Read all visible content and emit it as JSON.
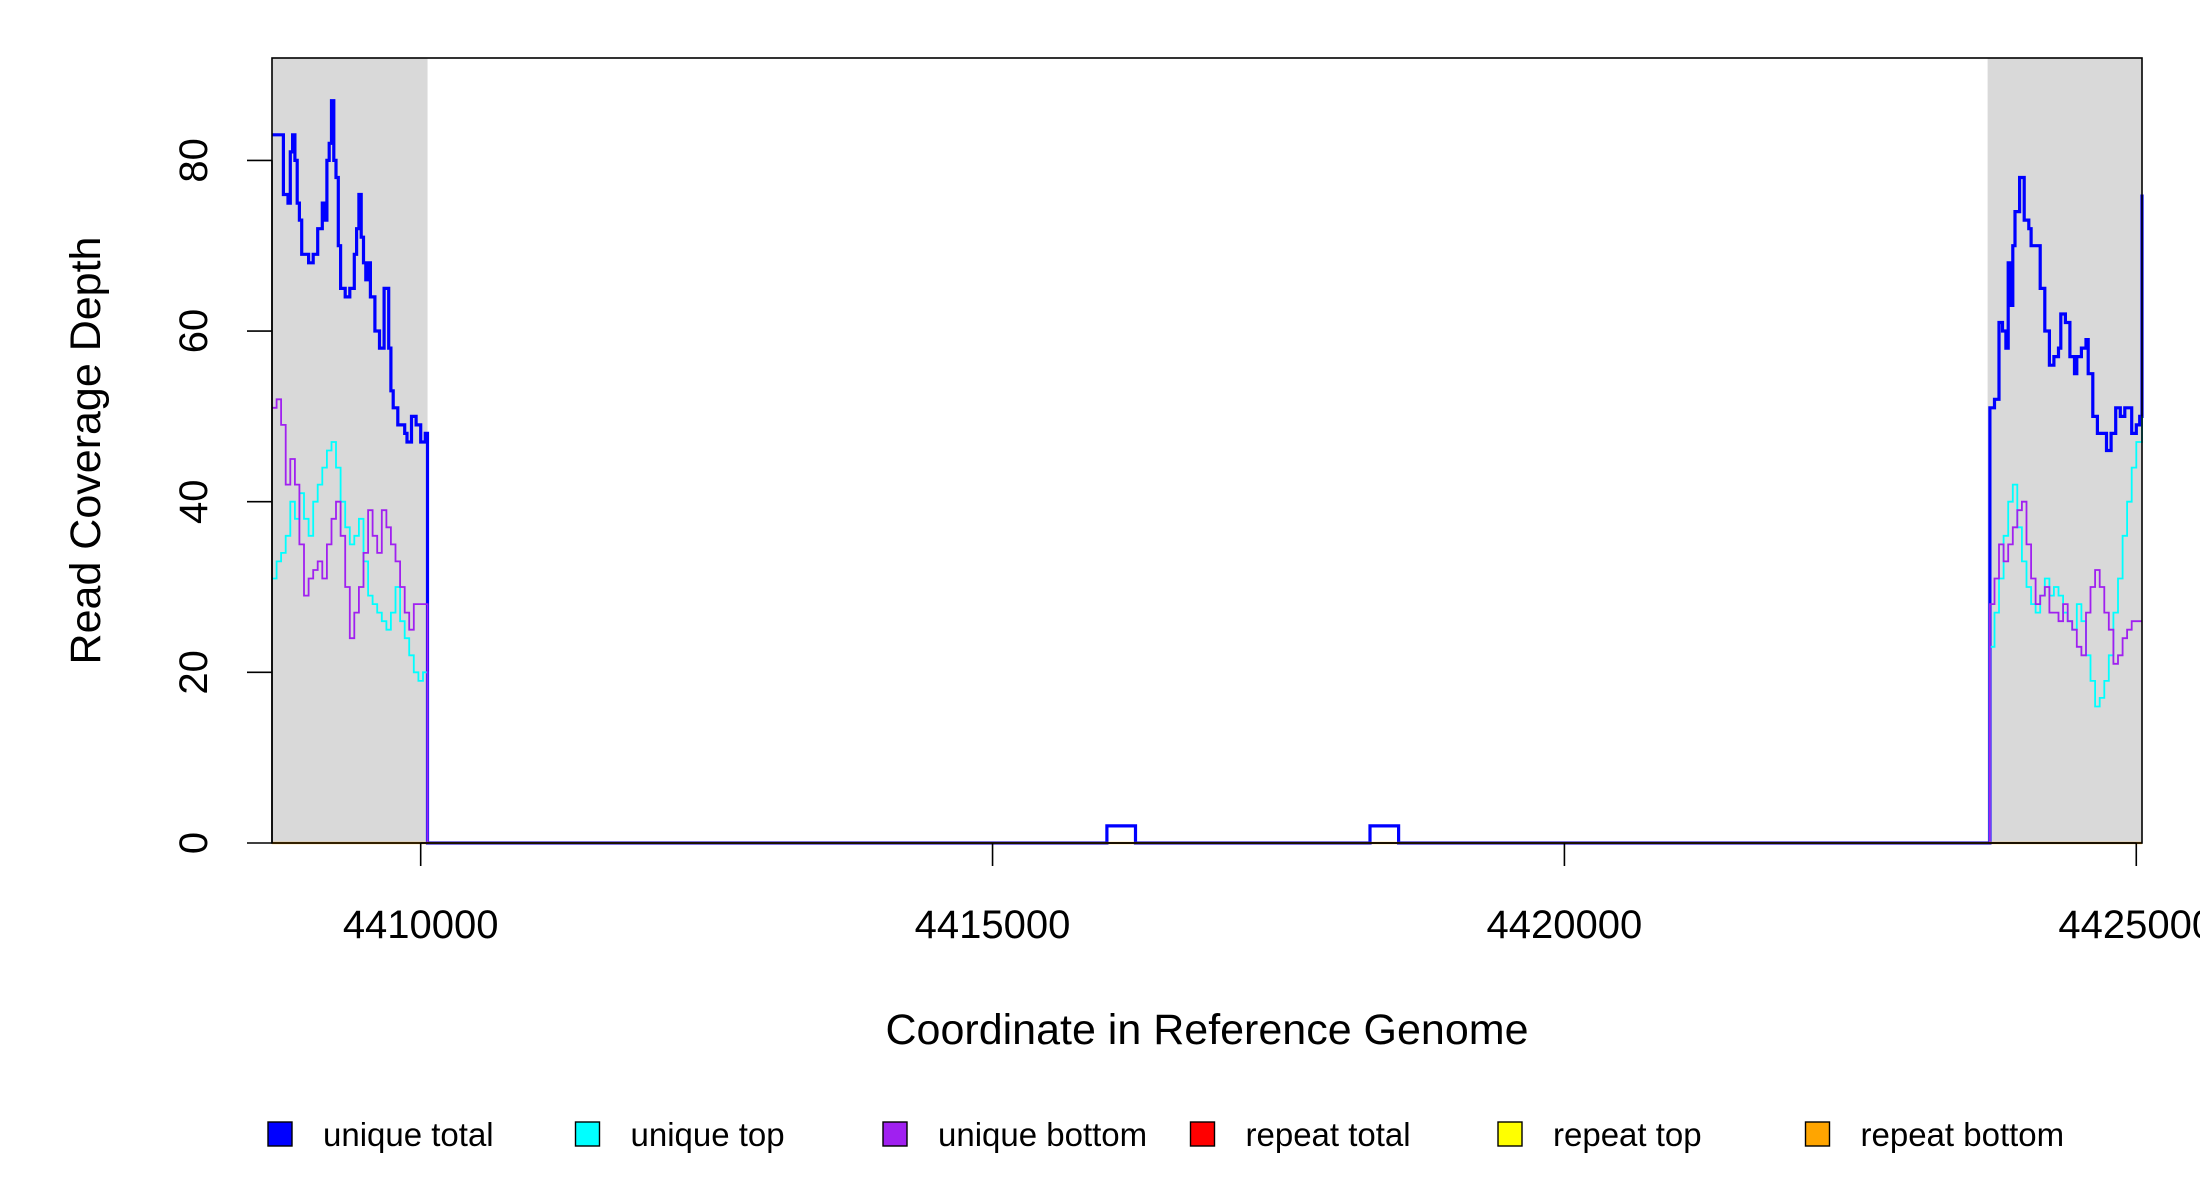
{
  "chart_data": {
    "type": "line",
    "title": "",
    "xlabel": "Coordinate in Reference Genome",
    "ylabel": "Read Coverage Depth",
    "xlim": [
      4408700,
      4425050
    ],
    "ylim": [
      0,
      92
    ],
    "x_ticks": [
      {
        "value": 4410000,
        "label": "4410000"
      },
      {
        "value": 4415000,
        "label": "4415000"
      },
      {
        "value": 4420000,
        "label": "4420000"
      },
      {
        "value": 4425000,
        "label": "4425000"
      }
    ],
    "y_ticks": [
      {
        "value": 0,
        "label": "0"
      },
      {
        "value": 20,
        "label": "20"
      },
      {
        "value": 40,
        "label": "40"
      },
      {
        "value": 60,
        "label": "60"
      },
      {
        "value": 80,
        "label": "80"
      }
    ],
    "shaded_regions": [
      {
        "x0": 4408700,
        "x1": 4410060,
        "color": "#d9d9d9"
      },
      {
        "x0": 4423700,
        "x1": 4425050,
        "color": "#d9d9d9"
      }
    ],
    "legend_position": "bottom",
    "series": [
      {
        "name": "unique total",
        "color": "#0000ff",
        "width": 3.2,
        "x": [
          4408700,
          4408780,
          4408800,
          4408840,
          4408860,
          4408880,
          4408900,
          4408920,
          4408940,
          4408960,
          4409000,
          4409020,
          4409060,
          4409100,
          4409140,
          4409160,
          4409180,
          4409200,
          4409220,
          4409240,
          4409260,
          4409280,
          4409300,
          4409340,
          4409380,
          4409420,
          4409440,
          4409460,
          4409480,
          4409500,
          4409520,
          4409540,
          4409560,
          4409600,
          4409640,
          4409680,
          4409720,
          4409740,
          4409760,
          4409800,
          4409840,
          4409860,
          4409880,
          4409920,
          4409960,
          4410000,
          4410040,
          4410060,
          4410100,
          4415980,
          4416000,
          4416200,
          4416250,
          4418280,
          4418300,
          4418500,
          4418550,
          4423700,
          4423720,
          4423760,
          4423800,
          4423830,
          4423860,
          4423880,
          4423900,
          4423920,
          4423940,
          4423980,
          4424020,
          4424060,
          4424080,
          4424120,
          4424160,
          4424200,
          4424240,
          4424280,
          4424320,
          4424340,
          4424380,
          4424420,
          4424460,
          4424480,
          4424520,
          4424560,
          4424580,
          4424620,
          4424660,
          4424700,
          4424740,
          4424780,
          4424820,
          4424860,
          4424900,
          4424960,
          4425000,
          4425030,
          4425050
        ],
        "y": [
          83,
          83,
          76,
          75,
          81,
          83,
          80,
          75,
          73,
          69,
          69,
          68,
          69,
          72,
          75,
          73,
          80,
          82,
          87,
          80,
          78,
          70,
          65,
          64,
          65,
          69,
          72,
          76,
          71,
          68,
          66,
          68,
          64,
          60,
          58,
          65,
          58,
          53,
          51,
          49,
          49,
          48,
          47,
          50,
          49,
          47,
          48,
          0,
          0,
          0,
          2,
          2,
          0,
          0,
          2,
          2,
          0,
          0,
          51,
          52,
          61,
          60,
          58,
          68,
          63,
          70,
          74,
          78,
          73,
          72,
          70,
          70,
          65,
          60,
          56,
          57,
          58,
          62,
          61,
          57,
          55,
          57,
          58,
          59,
          55,
          50,
          48,
          48,
          46,
          48,
          51,
          50,
          51,
          48,
          49,
          50,
          76
        ]
      },
      {
        "name": "unique top",
        "color": "#00ffff",
        "width": 1.8,
        "x": [
          4408700,
          4408740,
          4408780,
          4408820,
          4408860,
          4408900,
          4408940,
          4408980,
          4409020,
          4409060,
          4409100,
          4409140,
          4409180,
          4409220,
          4409260,
          4409300,
          4409340,
          4409380,
          4409420,
          4409460,
          4409500,
          4409540,
          4409580,
          4409620,
          4409660,
          4409700,
          4409740,
          4409780,
          4409820,
          4409860,
          4409900,
          4409940,
          4409980,
          4410020,
          4410040,
          4410060,
          4410100,
          4423700,
          4423720,
          4423760,
          4423800,
          4423840,
          4423880,
          4423920,
          4423960,
          4424000,
          4424040,
          4424080,
          4424120,
          4424160,
          4424200,
          4424240,
          4424280,
          4424320,
          4424360,
          4424400,
          4424440,
          4424480,
          4424520,
          4424560,
          4424600,
          4424640,
          4424680,
          4424720,
          4424760,
          4424800,
          4424840,
          4424880,
          4424920,
          4424960,
          4425000,
          4425050
        ],
        "y": [
          31,
          33,
          34,
          36,
          40,
          38,
          41,
          38,
          36,
          40,
          42,
          44,
          46,
          47,
          44,
          40,
          37,
          35,
          36,
          38,
          33,
          29,
          28,
          27,
          26,
          25,
          27,
          30,
          26,
          24,
          22,
          20,
          19,
          20,
          20,
          0,
          0,
          0,
          23,
          27,
          31,
          36,
          40,
          42,
          37,
          33,
          30,
          28,
          27,
          29,
          31,
          29,
          30,
          29,
          27,
          26,
          25,
          28,
          26,
          22,
          19,
          16,
          17,
          19,
          22,
          27,
          31,
          36,
          40,
          44,
          47,
          50
        ]
      },
      {
        "name": "unique bottom",
        "color": "#a020f0",
        "width": 1.8,
        "x": [
          4408700,
          4408740,
          4408780,
          4408820,
          4408860,
          4408900,
          4408940,
          4408980,
          4409020,
          4409060,
          4409100,
          4409140,
          4409180,
          4409220,
          4409260,
          4409300,
          4409340,
          4409380,
          4409420,
          4409460,
          4409500,
          4409540,
          4409580,
          4409620,
          4409660,
          4409700,
          4409740,
          4409780,
          4409820,
          4409860,
          4409900,
          4409940,
          4409980,
          4410020,
          4410060,
          4410100,
          4423700,
          4423720,
          4423760,
          4423800,
          4423840,
          4423880,
          4423920,
          4423960,
          4424000,
          4424040,
          4424080,
          4424120,
          4424160,
          4424200,
          4424240,
          4424280,
          4424320,
          4424360,
          4424400,
          4424440,
          4424480,
          4424520,
          4424560,
          4424600,
          4424640,
          4424680,
          4424720,
          4424760,
          4424800,
          4424840,
          4424880,
          4424920,
          4424960,
          4425000,
          4425050
        ],
        "y": [
          51,
          52,
          49,
          42,
          45,
          42,
          35,
          29,
          31,
          32,
          33,
          31,
          35,
          38,
          40,
          36,
          30,
          24,
          27,
          30,
          34,
          39,
          36,
          34,
          39,
          37,
          35,
          33,
          30,
          27,
          25,
          28,
          28,
          28,
          0,
          0,
          0,
          28,
          31,
          35,
          33,
          35,
          37,
          39,
          40,
          35,
          31,
          28,
          29,
          30,
          27,
          27,
          26,
          28,
          26,
          25,
          23,
          22,
          27,
          30,
          32,
          30,
          27,
          25,
          21,
          22,
          24,
          25,
          26,
          26,
          26
        ]
      },
      {
        "name": "repeat total",
        "color": "#ff0000",
        "width": 1.6,
        "x": [
          4408700,
          4425050
        ],
        "y": [
          0,
          0
        ]
      },
      {
        "name": "repeat top",
        "color": "#ffff00",
        "width": 1.6,
        "x": [
          4408700,
          4425050
        ],
        "y": [
          0,
          0
        ]
      },
      {
        "name": "repeat bottom",
        "color": "#ffa500",
        "width": 2.2,
        "x": [
          4408700,
          4425050
        ],
        "y": [
          0,
          0
        ]
      }
    ],
    "legend": [
      {
        "label": "unique total",
        "color": "#0000ff"
      },
      {
        "label": "unique top",
        "color": "#00ffff"
      },
      {
        "label": "unique bottom",
        "color": "#a020f0"
      },
      {
        "label": "repeat total",
        "color": "#ff0000"
      },
      {
        "label": "repeat top",
        "color": "#ffff00"
      },
      {
        "label": "repeat bottom",
        "color": "#ffa500"
      }
    ]
  }
}
